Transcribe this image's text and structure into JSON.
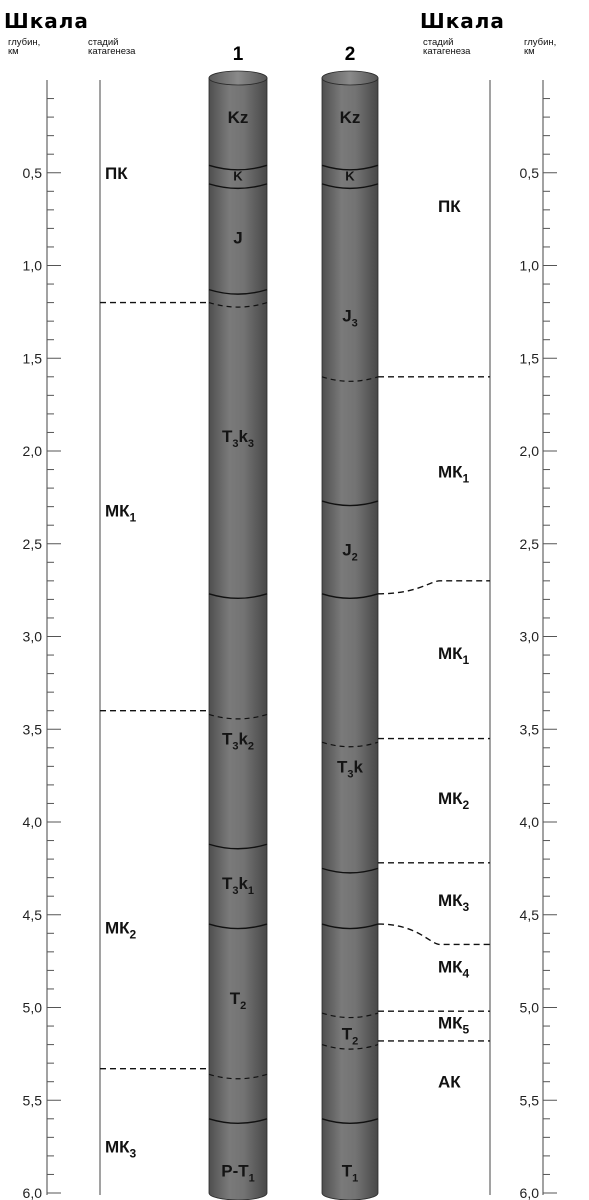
{
  "header": {
    "left_title": "Шкала",
    "right_title": "Шкала",
    "depth_caption_line1": "глубин,",
    "depth_caption_line2": "км",
    "stage_caption_line1": "стадий",
    "stage_caption_line2": "катагенеза"
  },
  "column_numbers": [
    "1",
    "2"
  ],
  "depth_scale": {
    "unit": "км",
    "min": 0,
    "max": 6.0,
    "major_ticks": [
      0.5,
      1.0,
      1.5,
      2.0,
      2.5,
      3.0,
      3.5,
      4.0,
      4.5,
      5.0,
      5.5,
      6.0
    ],
    "major_labels": [
      "0,5",
      "1,0",
      "1,5",
      "2,0",
      "2,5",
      "3,0",
      "3,5",
      "4,0",
      "4,5",
      "5,0",
      "5,5",
      "6,0"
    ],
    "minor_step": 0.1
  },
  "left_stages": {
    "boundaries_km": [
      1.2,
      3.4,
      5.33
    ],
    "stages": [
      {
        "label": "ПК",
        "sub": "",
        "depth_km": 0.5
      },
      {
        "label": "МК",
        "sub": "1",
        "depth_km": 2.32
      },
      {
        "label": "МК",
        "sub": "2",
        "depth_km": 4.57
      },
      {
        "label": "МК",
        "sub": "3",
        "depth_km": 5.75
      }
    ]
  },
  "right_stages": {
    "boundaries": [
      {
        "at_column_km": 1.6,
        "at_scale_km": 1.6
      },
      {
        "at_column_km": 2.77,
        "at_scale_km": 2.7
      },
      {
        "at_column_km": 3.55,
        "at_scale_km": 3.55
      },
      {
        "at_column_km": 4.22,
        "at_scale_km": 4.22
      },
      {
        "at_column_km": 4.55,
        "at_scale_km": 4.66
      },
      {
        "at_column_km": 5.02,
        "at_scale_km": 5.02
      },
      {
        "at_column_km": 5.18,
        "at_scale_km": 5.18
      }
    ],
    "stages": [
      {
        "label": "ПК",
        "sub": "",
        "depth_km": 0.68
      },
      {
        "label": "МК",
        "sub": "1",
        "depth_km": 2.11
      },
      {
        "label": "МК",
        "sub": "1",
        "depth_km": 3.09
      },
      {
        "label": "МК",
        "sub": "2",
        "depth_km": 3.87
      },
      {
        "label": "МК",
        "sub": "3",
        "depth_km": 4.42
      },
      {
        "label": "МК",
        "sub": "4",
        "depth_km": 4.78
      },
      {
        "label": "МК",
        "sub": "5",
        "depth_km": 5.08
      },
      {
        "label": "АК",
        "sub": "",
        "depth_km": 5.4
      }
    ]
  },
  "columns": [
    {
      "number": "1",
      "solid_boundaries_km": [
        0.46,
        0.56,
        1.13,
        2.77,
        4.12,
        4.55,
        5.6
      ],
      "dashed_boundaries_km": [
        1.2,
        3.42,
        5.36
      ],
      "labels": [
        {
          "base": "Kz",
          "sub": "",
          "suffix": "",
          "depth_km": 0.2
        },
        {
          "base": "K",
          "sub": "",
          "suffix": "",
          "depth_km": 0.51
        },
        {
          "base": "J",
          "sub": "",
          "suffix": "",
          "depth_km": 0.85
        },
        {
          "base": "T",
          "sub": "3",
          "suffix": "k",
          "sub2": "3",
          "depth_km": 1.92
        },
        {
          "base": "T",
          "sub": "3",
          "suffix": "k",
          "sub2": "2",
          "depth_km": 3.55
        },
        {
          "base": "T",
          "sub": "3",
          "suffix": "k",
          "sub2": "1",
          "depth_km": 4.33
        },
        {
          "base": "T",
          "sub": "2",
          "suffix": "",
          "sub2": "",
          "depth_km": 4.95
        },
        {
          "base": "P-T",
          "sub": "1",
          "suffix": "",
          "sub2": "",
          "depth_km": 5.88
        }
      ]
    },
    {
      "number": "2",
      "solid_boundaries_km": [
        0.46,
        0.56,
        2.27,
        2.77,
        4.25,
        4.55,
        5.6
      ],
      "dashed_boundaries_km": [
        1.6,
        3.57,
        5.03,
        5.2
      ],
      "labels": [
        {
          "base": "Kz",
          "sub": "",
          "suffix": "",
          "depth_km": 0.2
        },
        {
          "base": "K",
          "sub": "",
          "suffix": "",
          "depth_km": 0.51
        },
        {
          "base": "J",
          "sub": "3",
          "suffix": "",
          "depth_km": 1.27
        },
        {
          "base": "J",
          "sub": "2",
          "suffix": "",
          "depth_km": 2.53
        },
        {
          "base": "T",
          "sub": "3",
          "suffix": "k",
          "sub2": "",
          "depth_km": 3.7
        },
        {
          "base": "T",
          "sub": "2",
          "suffix": "",
          "sub2": "",
          "depth_km": 5.14
        },
        {
          "base": "T",
          "sub": "1",
          "suffix": "",
          "sub2": "",
          "depth_km": 5.88
        }
      ]
    }
  ],
  "colors": {
    "column_fill": "#6e6e6e",
    "column_shade": "#4a4a4a",
    "column_highlight": "#8a8a8a",
    "line": "#111111",
    "text": "#111111"
  }
}
